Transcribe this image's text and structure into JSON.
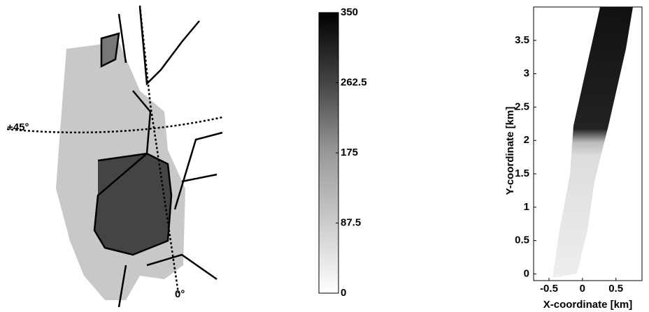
{
  "chart_data": [
    {
      "type": "map",
      "annotations": [
        "+45°",
        "0°"
      ],
      "colorbar": {
        "clim": [
          0,
          350
        ],
        "ticks": [
          0,
          87.5,
          175,
          262.5,
          350
        ]
      }
    },
    {
      "type": "heatmap",
      "xlabel": "X-coordinate [km]",
      "ylabel": "Y-coordinate [km]",
      "xlim": [
        -0.73,
        0.89
      ],
      "ylim": [
        -0.1,
        4.0
      ],
      "xticks": [
        -0.5,
        0,
        0.5
      ],
      "yticks": [
        0,
        0.5,
        1,
        1.5,
        2,
        2.5,
        3,
        3.5
      ]
    }
  ]
}
